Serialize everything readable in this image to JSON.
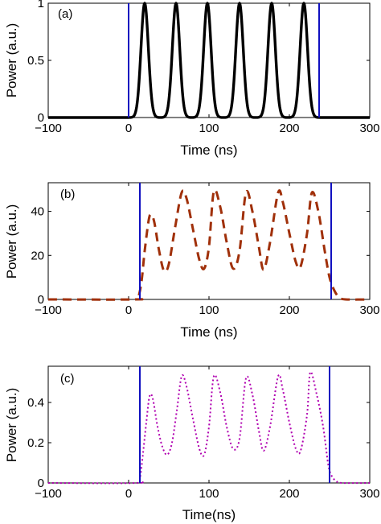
{
  "chart_data": [
    {
      "type": "line",
      "panel_label": "(a)",
      "xlabel": "Time (ns)",
      "ylabel": "Power (a.u.)",
      "xlim": [
        -100,
        300
      ],
      "ylim": [
        0,
        1
      ],
      "xticks": [
        -100,
        0,
        100,
        200,
        300
      ],
      "xtick_labels": [
        "−100",
        "0",
        "100",
        "200",
        "300"
      ],
      "yticks": [
        0,
        0.5,
        1
      ],
      "ytick_labels": [
        "0",
        "0.5",
        "1"
      ],
      "markers": [
        {
          "x": 0,
          "color": "#1010c0"
        },
        {
          "x": 237,
          "color": "#1010c0"
        }
      ],
      "series": [
        {
          "color": "#000000",
          "style": "solid",
          "peaks": [
            {
              "x": 20,
              "y": 1.0
            },
            {
              "x": 59,
              "y": 1.0
            },
            {
              "x": 98,
              "y": 1.0
            },
            {
              "x": 138,
              "y": 1.0
            },
            {
              "x": 178,
              "y": 1.0
            },
            {
              "x": 218,
              "y": 1.0
            }
          ],
          "troughs": [],
          "start": -100,
          "end": 300
        }
      ],
      "grid": false
    },
    {
      "type": "line",
      "panel_label": "(b)",
      "xlabel": "Time (ns)",
      "ylabel": "Power (a.u.)",
      "xlim": [
        -100,
        300
      ],
      "ylim": [
        0,
        53
      ],
      "xticks": [
        -100,
        0,
        100,
        200,
        300
      ],
      "xtick_labels": [
        "−100",
        "0",
        "100",
        "200",
        "300"
      ],
      "yticks": [
        0,
        20,
        40
      ],
      "ytick_labels": [
        "0",
        "20",
        "40"
      ],
      "markers": [
        {
          "x": 14,
          "color": "#1010c0"
        },
        {
          "x": 252,
          "color": "#1010c0"
        }
      ],
      "series": [
        {
          "color": "#a0300a",
          "style": "dashed",
          "rise": [
            10,
            14
          ],
          "fall": [
            252,
            268
          ],
          "points": [
            [
              -100,
              0
            ],
            [
              8,
              0
            ],
            [
              12,
              1
            ],
            [
              16,
              8
            ],
            [
              20,
              22
            ],
            [
              25,
              36
            ],
            [
              28,
              38.5
            ],
            [
              32,
              35
            ],
            [
              38,
              22
            ],
            [
              44,
              13
            ],
            [
              50,
              16
            ],
            [
              58,
              33
            ],
            [
              66,
              48.5
            ],
            [
              72,
              46
            ],
            [
              80,
              32
            ],
            [
              88,
              18
            ],
            [
              94,
              14
            ],
            [
              100,
              24
            ],
            [
              106,
              49
            ],
            [
              114,
              42
            ],
            [
              122,
              26
            ],
            [
              130,
              14
            ],
            [
              138,
              22
            ],
            [
              146,
              48.5
            ],
            [
              154,
              40
            ],
            [
              162,
              24
            ],
            [
              168,
              13.5
            ],
            [
              176,
              26
            ],
            [
              186,
              48.5
            ],
            [
              192,
              44
            ],
            [
              200,
              30
            ],
            [
              208,
              17
            ],
            [
              214,
              15
            ],
            [
              222,
              30
            ],
            [
              228,
              48.5
            ],
            [
              236,
              40
            ],
            [
              244,
              22
            ],
            [
              250,
              10
            ],
            [
              256,
              4
            ],
            [
              262,
              1
            ],
            [
              270,
              0
            ],
            [
              300,
              0
            ]
          ]
        }
      ],
      "grid": false
    },
    {
      "type": "line",
      "panel_label": "(c)",
      "xlabel": "Time(ns)",
      "ylabel": "Power (a.u.)",
      "xlim": [
        -100,
        300
      ],
      "ylim": [
        0,
        0.58
      ],
      "xticks": [
        -100,
        0,
        100,
        200,
        300
      ],
      "xtick_labels": [
        "−100",
        "0",
        "100",
        "200",
        "300"
      ],
      "yticks": [
        0,
        0.2,
        0.4
      ],
      "ytick_labels": [
        "0",
        "0.2",
        "0.4"
      ],
      "markers": [
        {
          "x": 14,
          "color": "#1010c0"
        },
        {
          "x": 250,
          "color": "#1010c0"
        }
      ],
      "series": [
        {
          "color": "#b000b0",
          "style": "dotted",
          "points": [
            [
              -100,
              0
            ],
            [
              10,
              0
            ],
            [
              14,
              0.02
            ],
            [
              18,
              0.15
            ],
            [
              22,
              0.3
            ],
            [
              26,
              0.43
            ],
            [
              30,
              0.42
            ],
            [
              36,
              0.28
            ],
            [
              42,
              0.18
            ],
            [
              48,
              0.14
            ],
            [
              54,
              0.2
            ],
            [
              60,
              0.36
            ],
            [
              66,
              0.53
            ],
            [
              72,
              0.48
            ],
            [
              80,
              0.32
            ],
            [
              88,
              0.17
            ],
            [
              94,
              0.14
            ],
            [
              100,
              0.28
            ],
            [
              106,
              0.53
            ],
            [
              114,
              0.45
            ],
            [
              122,
              0.28
            ],
            [
              130,
              0.17
            ],
            [
              138,
              0.22
            ],
            [
              146,
              0.52
            ],
            [
              154,
              0.44
            ],
            [
              162,
              0.26
            ],
            [
              168,
              0.16
            ],
            [
              176,
              0.28
            ],
            [
              186,
              0.53
            ],
            [
              192,
              0.46
            ],
            [
              200,
              0.3
            ],
            [
              208,
              0.17
            ],
            [
              214,
              0.16
            ],
            [
              222,
              0.34
            ],
            [
              226,
              0.55
            ],
            [
              234,
              0.44
            ],
            [
              242,
              0.28
            ],
            [
              248,
              0.1
            ],
            [
              252,
              0.04
            ],
            [
              258,
              0.01
            ],
            [
              266,
              0
            ],
            [
              300,
              0
            ]
          ]
        }
      ],
      "grid": false
    }
  ]
}
